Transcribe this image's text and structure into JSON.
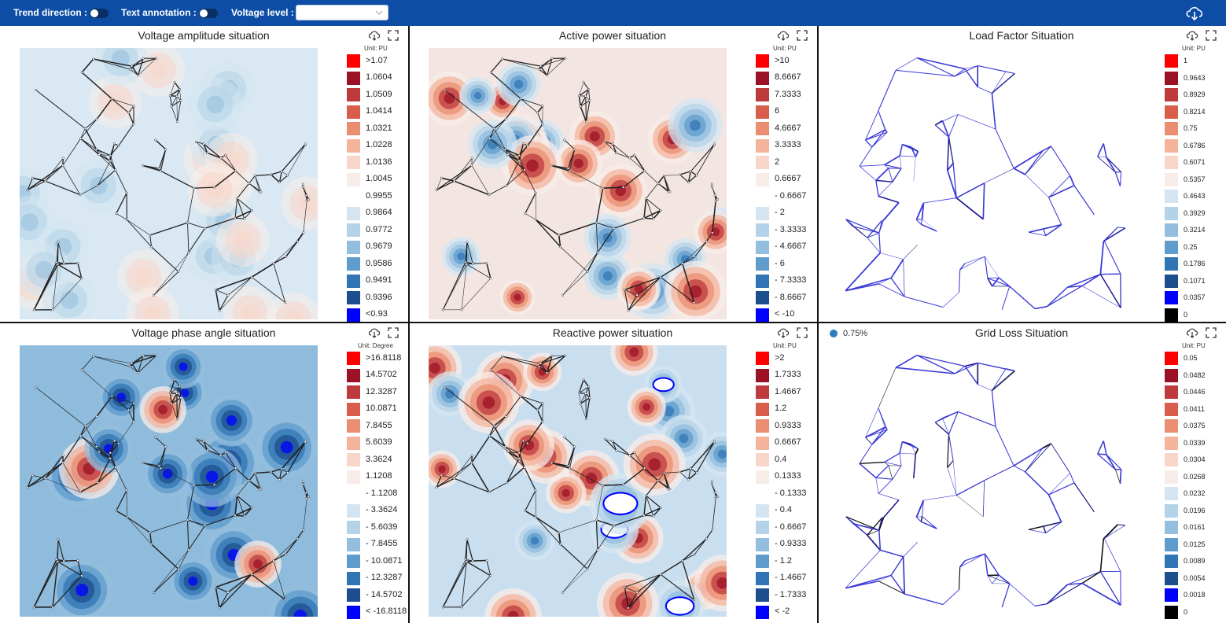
{
  "toolbar": {
    "trend_direction_label": "Trend direction :",
    "text_annotation_label": "Text annotation :",
    "voltage_level_label": "Voltage level :",
    "voltage_level_value": "",
    "download_icon": "cloud-download-icon",
    "accent_color": "#0d4da6"
  },
  "panels": [
    {
      "id": "voltage-amplitude",
      "title": "Voltage amplitude situation",
      "unit": "Unit: PU",
      "map_style": "voltage",
      "legend": [
        {
          "label": ">1.07",
          "color": "#ff0000"
        },
        {
          "label": "1.0604",
          "color": "#9b1125"
        },
        {
          "label": "1.0509",
          "color": "#bd3a3d"
        },
        {
          "label": "1.0414",
          "color": "#d95d4b"
        },
        {
          "label": "1.0321",
          "color": "#ea8e72"
        },
        {
          "label": "1.0228",
          "color": "#f4b49c"
        },
        {
          "label": "1.0136",
          "color": "#f8d6c9"
        },
        {
          "label": "1.0045",
          "color": "#f8ece8"
        },
        {
          "label": "0.9955",
          "color": "#ffffff"
        },
        {
          "label": "0.9864",
          "color": "#d4e5f1"
        },
        {
          "label": "0.9772",
          "color": "#b5d3e8"
        },
        {
          "label": "0.9679",
          "color": "#93bedd"
        },
        {
          "label": "0.9586",
          "color": "#5f9ccc"
        },
        {
          "label": "0.9491",
          "color": "#3275b4"
        },
        {
          "label": "0.9396",
          "color": "#1d4f8f"
        },
        {
          "label": "<0.93",
          "color": "#0000ff"
        }
      ]
    },
    {
      "id": "active-power",
      "title": "Active power situation",
      "unit": "Unit: PU",
      "map_style": "power",
      "legend": [
        {
          "label": ">10",
          "color": "#ff0000"
        },
        {
          "label": "8.6667",
          "color": "#9b1125"
        },
        {
          "label": "7.3333",
          "color": "#bd3a3d"
        },
        {
          "label": "6",
          "color": "#d95d4b"
        },
        {
          "label": "4.6667",
          "color": "#ea8e72"
        },
        {
          "label": "3.3333",
          "color": "#f4b49c"
        },
        {
          "label": "2",
          "color": "#f8d6c9"
        },
        {
          "label": "0.6667",
          "color": "#f8ece8"
        },
        {
          "label": "- 0.6667",
          "color": "#ffffff"
        },
        {
          "label": "- 2",
          "color": "#d4e5f1"
        },
        {
          "label": "- 3.3333",
          "color": "#b5d3e8"
        },
        {
          "label": "- 4.6667",
          "color": "#93bedd"
        },
        {
          "label": "- 6",
          "color": "#5f9ccc"
        },
        {
          "label": "- 7.3333",
          "color": "#3275b4"
        },
        {
          "label": "- 8.6667",
          "color": "#1d4f8f"
        },
        {
          "label": "< -10",
          "color": "#0000ff"
        }
      ]
    },
    {
      "id": "load-factor",
      "title": "Load Factor Situation",
      "unit": "Unit: PU",
      "map_style": "lines",
      "legend": [
        {
          "label": "1",
          "color": "#ff0000"
        },
        {
          "label": "0.9643",
          "color": "#9b1125"
        },
        {
          "label": "0.8929",
          "color": "#bd3a3d"
        },
        {
          "label": "0.8214",
          "color": "#d95d4b"
        },
        {
          "label": "0.75",
          "color": "#ea8e72"
        },
        {
          "label": "0.6786",
          "color": "#f4b49c"
        },
        {
          "label": "0.6071",
          "color": "#f8d6c9"
        },
        {
          "label": "0.5357",
          "color": "#f8ece8"
        },
        {
          "label": "0.4643",
          "color": "#d4e5f1"
        },
        {
          "label": "0.3929",
          "color": "#b5d3e8"
        },
        {
          "label": "0.3214",
          "color": "#93bedd"
        },
        {
          "label": "0.25",
          "color": "#5f9ccc"
        },
        {
          "label": "0.1786",
          "color": "#3275b4"
        },
        {
          "label": "0.1071",
          "color": "#1d4f8f"
        },
        {
          "label": "0.0357",
          "color": "#0000ff"
        },
        {
          "label": "0",
          "color": "#000000"
        }
      ]
    },
    {
      "id": "voltage-phase-angle",
      "title": "Voltage phase angle situation",
      "unit": "Unit: Degree",
      "map_style": "angle",
      "legend": [
        {
          "label": ">16.8118",
          "color": "#ff0000"
        },
        {
          "label": "14.5702",
          "color": "#9b1125"
        },
        {
          "label": "12.3287",
          "color": "#bd3a3d"
        },
        {
          "label": "10.0871",
          "color": "#d95d4b"
        },
        {
          "label": "7.8455",
          "color": "#ea8e72"
        },
        {
          "label": "5.6039",
          "color": "#f4b49c"
        },
        {
          "label": "3.3624",
          "color": "#f8d6c9"
        },
        {
          "label": "1.1208",
          "color": "#f8ece8"
        },
        {
          "label": "- 1.1208",
          "color": "#ffffff"
        },
        {
          "label": "- 3.3624",
          "color": "#d4e5f1"
        },
        {
          "label": "- 5.6039",
          "color": "#b5d3e8"
        },
        {
          "label": "- 7.8455",
          "color": "#93bedd"
        },
        {
          "label": "- 10.0871",
          "color": "#5f9ccc"
        },
        {
          "label": "- 12.3287",
          "color": "#3275b4"
        },
        {
          "label": "- 14.5702",
          "color": "#1d4f8f"
        },
        {
          "label": "< -16.8118",
          "color": "#0000ff"
        }
      ]
    },
    {
      "id": "reactive-power",
      "title": "Reactive power situation",
      "unit": "Unit: PU",
      "map_style": "reactive",
      "legend": [
        {
          "label": ">2",
          "color": "#ff0000"
        },
        {
          "label": "1.7333",
          "color": "#9b1125"
        },
        {
          "label": "1.4667",
          "color": "#bd3a3d"
        },
        {
          "label": "1.2",
          "color": "#d95d4b"
        },
        {
          "label": "0.9333",
          "color": "#ea8e72"
        },
        {
          "label": "0.6667",
          "color": "#f4b49c"
        },
        {
          "label": "0.4",
          "color": "#f8d6c9"
        },
        {
          "label": "0.1333",
          "color": "#f8ece8"
        },
        {
          "label": "- 0.1333",
          "color": "#ffffff"
        },
        {
          "label": "- 0.4",
          "color": "#d4e5f1"
        },
        {
          "label": "- 0.6667",
          "color": "#b5d3e8"
        },
        {
          "label": "- 0.9333",
          "color": "#93bedd"
        },
        {
          "label": "- 1.2",
          "color": "#5f9ccc"
        },
        {
          "label": "- 1.4667",
          "color": "#3275b4"
        },
        {
          "label": "- 1.7333",
          "color": "#1d4f8f"
        },
        {
          "label": "< -2",
          "color": "#0000ff"
        }
      ]
    },
    {
      "id": "grid-loss",
      "title": "Grid Loss Situation",
      "unit": "Unit: PU",
      "map_style": "lines",
      "badge": {
        "text": "0.75%",
        "color": "#2f7cc0"
      },
      "legend": [
        {
          "label": "0.05",
          "color": "#ff0000"
        },
        {
          "label": "0.0482",
          "color": "#9b1125"
        },
        {
          "label": "0.0446",
          "color": "#bd3a3d"
        },
        {
          "label": "0.0411",
          "color": "#d95d4b"
        },
        {
          "label": "0.0375",
          "color": "#ea8e72"
        },
        {
          "label": "0.0339",
          "color": "#f4b49c"
        },
        {
          "label": "0.0304",
          "color": "#f8d6c9"
        },
        {
          "label": "0.0268",
          "color": "#f8ece8"
        },
        {
          "label": "0.0232",
          "color": "#d4e5f1"
        },
        {
          "label": "0.0196",
          "color": "#b5d3e8"
        },
        {
          "label": "0.0161",
          "color": "#93bedd"
        },
        {
          "label": "0.0125",
          "color": "#5f9ccc"
        },
        {
          "label": "0.0089",
          "color": "#3275b4"
        },
        {
          "label": "0.0054",
          "color": "#1d4f8f"
        },
        {
          "label": "0.0018",
          "color": "#0000ff"
        },
        {
          "label": "0",
          "color": "#000000"
        }
      ]
    }
  ]
}
